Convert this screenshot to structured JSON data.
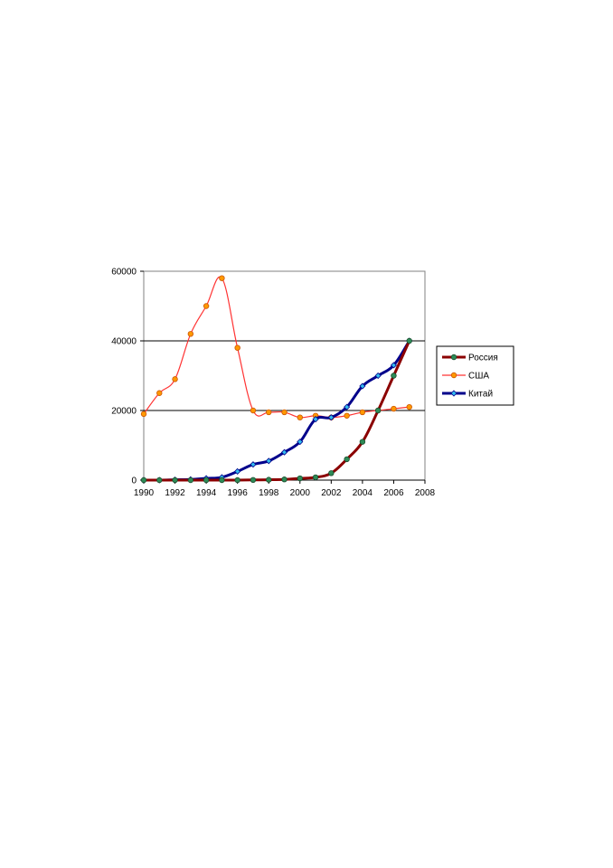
{
  "chart_data": {
    "type": "line",
    "x": [
      1990,
      1991,
      1992,
      1993,
      1994,
      1995,
      1996,
      1997,
      1998,
      1999,
      2000,
      2001,
      2002,
      2003,
      2004,
      2005,
      2006,
      2007
    ],
    "xlim": [
      1990,
      2008
    ],
    "xticks": [
      "1990",
      "1992",
      "1994",
      "1996",
      "1998",
      "2000",
      "2002",
      "2004",
      "2006",
      "2008"
    ],
    "ylim": [
      0,
      60000
    ],
    "yticks": [
      "0",
      "20000",
      "40000",
      "60000"
    ],
    "grid": "horizontal",
    "legend_position": "right",
    "series": [
      {
        "name": "Россия",
        "color": "#8b0000",
        "marker_color": "#2e8b57",
        "values": [
          0,
          0,
          0,
          0,
          0,
          0,
          0,
          50,
          100,
          200,
          500,
          800,
          2000,
          6000,
          11000,
          20000,
          30000,
          40000
        ]
      },
      {
        "name": "США",
        "color": "#ff3333",
        "marker_color": "#ff9900",
        "values": [
          19000,
          25000,
          29000,
          42000,
          50000,
          58000,
          38000,
          20000,
          19500,
          19500,
          18000,
          18500,
          18000,
          18500,
          19500,
          20000,
          20500,
          21000
        ]
      },
      {
        "name": "Китай",
        "color": "#00008b",
        "marker_color": "#33bbee",
        "values": [
          0,
          0,
          100,
          200,
          500,
          800,
          2500,
          4500,
          5500,
          8000,
          11000,
          17500,
          18000,
          21000,
          27000,
          30000,
          33000,
          40000
        ]
      }
    ]
  }
}
